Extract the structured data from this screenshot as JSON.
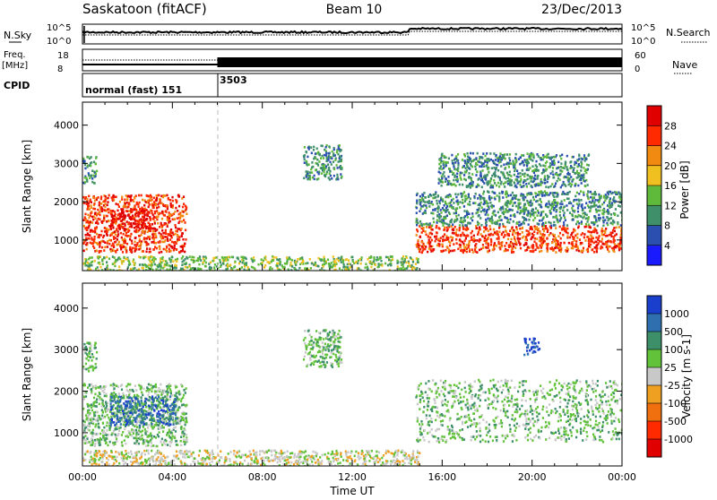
{
  "header": {
    "station": "Saskatoon (fitACF)",
    "beam": "Beam 10",
    "date": "23/Dec/2013"
  },
  "status_panels": {
    "nsky_label": "N.Sky",
    "nsky_ticks": [
      "10^5",
      "10^0"
    ],
    "nsearch_label": "N.Search",
    "freq_label_top": "Freq.",
    "freq_label_unit": "[MHz]",
    "freq_ticks": [
      "18",
      "8"
    ],
    "nave_label": "Nave",
    "nave_ticks": [
      "60",
      "0"
    ],
    "cpid_label": "CPID",
    "cpid_segments": [
      {
        "label": "normal (fast) 151",
        "start_hour": 0,
        "end_hour": 6
      },
      {
        "label": "3503",
        "start_hour": 6,
        "end_hour": 24
      }
    ]
  },
  "chart_data": [
    {
      "type": "heatmap",
      "name": "power-panel",
      "ylabel": "Slant Range [km]",
      "xlim": [
        0,
        24
      ],
      "ylim": [
        200,
        4600
      ],
      "yticks": [
        1000,
        2000,
        3000,
        4000
      ],
      "colorbar": {
        "label": "Power [dB]",
        "ticks": [
          "4",
          "8",
          "12",
          "16",
          "20",
          "24",
          "28"
        ],
        "colors": [
          "#1a1aff",
          "#2a4fb0",
          "#3e8f6a",
          "#5fb93a",
          "#f0c020",
          "#f08a10",
          "#ff2a00",
          "#e00000"
        ]
      },
      "regions": [
        {
          "x": [
            0,
            4.6
          ],
          "y": [
            700,
            2200
          ],
          "value": 24
        },
        {
          "x": [
            1.2,
            3.2
          ],
          "y": [
            1300,
            1850
          ],
          "value": 28
        },
        {
          "x": [
            0,
            0.6
          ],
          "y": [
            2500,
            3200
          ],
          "value": 10
        },
        {
          "x": [
            9.8,
            11.5
          ],
          "y": [
            2600,
            3500
          ],
          "value": 8
        },
        {
          "x": [
            14.8,
            24
          ],
          "y": [
            700,
            1400
          ],
          "value": 24
        },
        {
          "x": [
            14.8,
            24
          ],
          "y": [
            1400,
            2300
          ],
          "value": 10
        },
        {
          "x": [
            15.8,
            22.5
          ],
          "y": [
            2400,
            3300
          ],
          "value": 10
        },
        {
          "x": [
            0,
            15
          ],
          "y": [
            200,
            600
          ],
          "value": 14
        }
      ]
    },
    {
      "type": "heatmap",
      "name": "velocity-panel",
      "xlabel": "Time UT",
      "ylabel": "Slant Range [km]",
      "xlim": [
        0,
        24
      ],
      "ylim": [
        200,
        4600
      ],
      "yticks": [
        1000,
        2000,
        3000,
        4000
      ],
      "xticks": [
        "00:00",
        "04:00",
        "08:00",
        "12:00",
        "16:00",
        "20:00",
        "00:00"
      ],
      "colorbar": {
        "label": "Velocity [m s-1]",
        "ticks": [
          "1000",
          "500",
          "100",
          "25",
          "-25",
          "-100",
          "-500",
          "-1000"
        ],
        "colors": [
          "#1a3fcc",
          "#2f6fb0",
          "#3d8f6a",
          "#62c33a",
          "#c8c8c8",
          "#f0a020",
          "#f07010",
          "#ff2a00",
          "#e00000"
        ]
      },
      "regions": [
        {
          "x": [
            0,
            4.6
          ],
          "y": [
            700,
            2200
          ],
          "value": "25"
        },
        {
          "x": [
            1.2,
            4.2
          ],
          "y": [
            1200,
            1900
          ],
          "value": "500"
        },
        {
          "x": [
            0,
            0.6
          ],
          "y": [
            2500,
            3200
          ],
          "value": "25"
        },
        {
          "x": [
            9.8,
            11.5
          ],
          "y": [
            2600,
            3500
          ],
          "value": "25"
        },
        {
          "x": [
            14.8,
            24
          ],
          "y": [
            800,
            2300
          ],
          "value": "25"
        },
        {
          "x": [
            19.6,
            20.3
          ],
          "y": [
            2900,
            3300
          ],
          "value": "1000"
        },
        {
          "x": [
            0,
            15
          ],
          "y": [
            200,
            600
          ],
          "value": "-25"
        }
      ]
    }
  ]
}
